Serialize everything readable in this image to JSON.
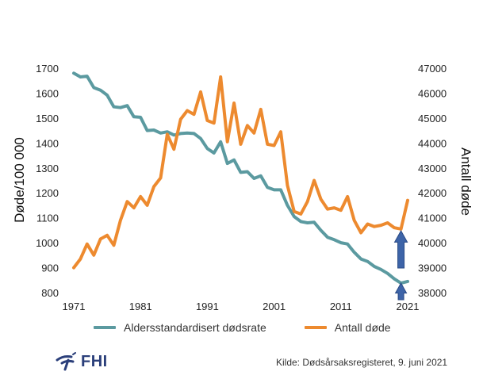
{
  "chart_data": {
    "type": "line",
    "dual_axis": true,
    "x_tick_labels": [
      "1971",
      "1981",
      "1991",
      "2001",
      "2011",
      "2021"
    ],
    "xlim": [
      1971,
      2021
    ],
    "ylabel_left": "Døde/100 000",
    "ylim_left": [
      800,
      1700
    ],
    "yticks_left": [
      "800",
      "900",
      "1000",
      "1100",
      "1200",
      "1300",
      "1400",
      "1500",
      "1600",
      "1700"
    ],
    "ylabel_right": "Antall døde",
    "ylim_right": [
      38000,
      47000
    ],
    "yticks_right": [
      "38000",
      "39000",
      "40000",
      "41000",
      "42000",
      "43000",
      "44000",
      "45000",
      "46000",
      "47000"
    ],
    "x": [
      1971,
      1972,
      1973,
      1974,
      1975,
      1976,
      1977,
      1978,
      1979,
      1980,
      1981,
      1982,
      1983,
      1984,
      1985,
      1986,
      1987,
      1988,
      1989,
      1990,
      1991,
      1992,
      1993,
      1994,
      1995,
      1996,
      1997,
      1998,
      1999,
      2000,
      2001,
      2002,
      2003,
      2004,
      2005,
      2006,
      2007,
      2008,
      2009,
      2010,
      2011,
      2012,
      2013,
      2014,
      2015,
      2016,
      2017,
      2018,
      2019,
      2020,
      2021
    ],
    "series": [
      {
        "name": "Aldersstandardisert dødsrate",
        "axis": "left",
        "color": "#5b9aa0",
        "values": [
          1680,
          1665,
          1668,
          1622,
          1612,
          1592,
          1545,
          1542,
          1550,
          1505,
          1503,
          1450,
          1452,
          1440,
          1445,
          1432,
          1438,
          1440,
          1438,
          1418,
          1378,
          1360,
          1405,
          1318,
          1332,
          1282,
          1285,
          1258,
          1268,
          1222,
          1212,
          1212,
          1150,
          1105,
          1085,
          1080,
          1082,
          1050,
          1022,
          1012,
          1000,
          995,
          962,
          935,
          925,
          905,
          893,
          877,
          855,
          838,
          845
        ]
      },
      {
        "name": "Antall døde",
        "axis": "right",
        "color": "#ed8a2f",
        "values": [
          39000,
          39350,
          39950,
          39500,
          40150,
          40300,
          39900,
          40900,
          41650,
          41400,
          41850,
          41500,
          42250,
          42600,
          44350,
          43750,
          44950,
          45300,
          45150,
          46050,
          44900,
          44800,
          46650,
          44050,
          45600,
          43950,
          44700,
          44400,
          45350,
          43950,
          43900,
          44450,
          42300,
          41250,
          41150,
          41650,
          42500,
          41750,
          41350,
          41400,
          41300,
          41850,
          40900,
          40400,
          40750,
          40650,
          40700,
          40800,
          40600,
          40550,
          41700
        ]
      }
    ],
    "annotations": [
      "arrow-up-2020",
      "arrow-up-2021"
    ],
    "legend_position": "bottom"
  },
  "legend": {
    "rate_label": "Aldersstandardisert dødsrate",
    "count_label": "Antall døde"
  },
  "footer": {
    "logo_text": "FHI",
    "source": "Kilde: Dødsårsaksregisteret, 9. juni 2021"
  },
  "colors": {
    "rate": "#5b9aa0",
    "count": "#ed8a2f",
    "arrow": "#3d64a8"
  }
}
